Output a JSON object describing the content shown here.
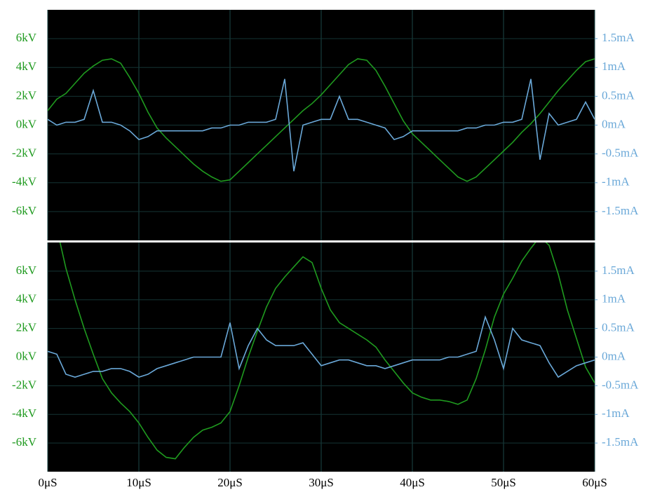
{
  "chart_data": [
    {
      "type": "line",
      "x": [
        0,
        1,
        2,
        3,
        4,
        5,
        6,
        7,
        8,
        9,
        10,
        11,
        12,
        13,
        14,
        15,
        16,
        17,
        18,
        19,
        20,
        21,
        22,
        23,
        24,
        25,
        26,
        27,
        28,
        29,
        30,
        31,
        32,
        33,
        34,
        35,
        36,
        37,
        38,
        39,
        40,
        41,
        42,
        43,
        44,
        45,
        46,
        47,
        48,
        49,
        50,
        51,
        52,
        53,
        54,
        55,
        56,
        57,
        58,
        59,
        60
      ],
      "xlim": [
        0,
        60
      ],
      "xticks": [
        0,
        10,
        20,
        30,
        40,
        50,
        60
      ],
      "ylim": [
        -8,
        8
      ],
      "yticks": [
        {
          "value": -6,
          "label": "-6kV"
        },
        {
          "value": -4,
          "label": "-4kV"
        },
        {
          "value": -2,
          "label": "-2kV"
        },
        {
          "value": 0,
          "label": "0kV"
        },
        {
          "value": 2,
          "label": "2kV"
        },
        {
          "value": 4,
          "label": "4kV"
        },
        {
          "value": 6,
          "label": "6kV"
        }
      ],
      "y2lim": [
        -2,
        2
      ],
      "y2ticks": [
        {
          "value": -1.5,
          "label": "-1.5mA"
        },
        {
          "value": -1,
          "label": "-1mA"
        },
        {
          "value": -0.5,
          "label": "-0.5mA"
        },
        {
          "value": 0,
          "label": "0mA"
        },
        {
          "value": 0.5,
          "label": "0.5mA"
        },
        {
          "value": 1,
          "label": "1mA"
        },
        {
          "value": 1.5,
          "label": "1.5mA"
        }
      ],
      "grid": true,
      "series": [
        {
          "color": "#1f9a1f",
          "values": [
            1.0,
            1.8,
            2.2,
            2.9,
            3.6,
            4.1,
            4.5,
            4.6,
            4.3,
            3.3,
            2.2,
            0.9,
            -0.2,
            -0.9,
            -1.5,
            -2.1,
            -2.7,
            -3.2,
            -3.6,
            -3.9,
            -3.8,
            -3.2,
            -2.6,
            -2.0,
            -1.4,
            -0.8,
            -0.2,
            0.4,
            1.0,
            1.5,
            2.1,
            2.8,
            3.5,
            4.2,
            4.6,
            4.5,
            3.8,
            2.7,
            1.5,
            0.3,
            -0.6,
            -1.2,
            -1.8,
            -2.4,
            -3.0,
            -3.6,
            -3.9,
            -3.6,
            -3.0,
            -2.4,
            -1.8,
            -1.2,
            -0.5,
            0.1,
            0.8,
            1.6,
            2.4,
            3.1,
            3.8,
            4.4,
            4.6
          ]
        },
        {
          "color": "#6aa8d8",
          "axis": "y2",
          "values": [
            0.1,
            0.0,
            0.05,
            0.05,
            0.1,
            0.6,
            0.05,
            0.05,
            0.0,
            -0.1,
            -0.25,
            -0.2,
            -0.1,
            -0.1,
            -0.1,
            -0.1,
            -0.1,
            -0.1,
            -0.05,
            -0.05,
            0.0,
            0.0,
            0.05,
            0.05,
            0.05,
            0.1,
            0.8,
            -0.8,
            0.0,
            0.05,
            0.1,
            0.1,
            0.5,
            0.1,
            0.1,
            0.05,
            0.0,
            -0.05,
            -0.25,
            -0.2,
            -0.1,
            -0.1,
            -0.1,
            -0.1,
            -0.1,
            -0.1,
            -0.05,
            -0.05,
            0.0,
            0.0,
            0.05,
            0.05,
            0.1,
            0.8,
            -0.6,
            0.2,
            0.0,
            0.05,
            0.1,
            0.4,
            0.1
          ]
        }
      ]
    },
    {
      "type": "line",
      "x": [
        0,
        1,
        2,
        3,
        4,
        5,
        6,
        7,
        8,
        9,
        10,
        11,
        12,
        13,
        14,
        15,
        16,
        17,
        18,
        19,
        20,
        21,
        22,
        23,
        24,
        25,
        26,
        27,
        28,
        29,
        30,
        31,
        32,
        33,
        34,
        35,
        36,
        37,
        38,
        39,
        40,
        41,
        42,
        43,
        44,
        45,
        46,
        47,
        48,
        49,
        50,
        51,
        52,
        53,
        54,
        55,
        56,
        57,
        58,
        59,
        60
      ],
      "xlim": [
        0,
        60
      ],
      "xticks": [
        {
          "value": 0,
          "label": "0μS"
        },
        {
          "value": 10,
          "label": "10μS"
        },
        {
          "value": 20,
          "label": "20μS"
        },
        {
          "value": 30,
          "label": "30μS"
        },
        {
          "value": 40,
          "label": "40μS"
        },
        {
          "value": 50,
          "label": "50μS"
        },
        {
          "value": 60,
          "label": "60μS"
        }
      ],
      "ylim": [
        -8,
        8
      ],
      "yticks": [
        {
          "value": -6,
          "label": "-6kV"
        },
        {
          "value": -4,
          "label": "-4kV"
        },
        {
          "value": -2,
          "label": "-2kV"
        },
        {
          "value": 0,
          "label": "0kV"
        },
        {
          "value": 2,
          "label": "2kV"
        },
        {
          "value": 4,
          "label": "4kV"
        },
        {
          "value": 6,
          "label": "6kV"
        }
      ],
      "y2lim": [
        -2,
        2
      ],
      "y2ticks": [
        {
          "value": -1.5,
          "label": "-1.5mA"
        },
        {
          "value": -1,
          "label": "-1mA"
        },
        {
          "value": -0.5,
          "label": "-0.5mA"
        },
        {
          "value": 0,
          "label": "0mA"
        },
        {
          "value": 0.5,
          "label": "0.5mA"
        },
        {
          "value": 1,
          "label": "1mA"
        },
        {
          "value": 1.5,
          "label": "1.5mA"
        }
      ],
      "grid": true,
      "series": [
        {
          "color": "#1f9a1f",
          "values": [
            11.0,
            9.0,
            6.2,
            4.0,
            2.0,
            0.2,
            -1.5,
            -2.5,
            -3.2,
            -3.8,
            -4.6,
            -5.6,
            -6.5,
            -7.0,
            -7.1,
            -6.3,
            -5.6,
            -5.1,
            -4.9,
            -4.6,
            -3.8,
            -2.0,
            0.0,
            1.8,
            3.5,
            4.8,
            5.6,
            6.3,
            7.0,
            6.6,
            4.8,
            3.3,
            2.4,
            2.0,
            1.6,
            1.2,
            0.7,
            -0.2,
            -1.0,
            -1.8,
            -2.5,
            -2.8,
            -3.0,
            -3.0,
            -3.1,
            -3.3,
            -3.0,
            -1.5,
            0.5,
            2.8,
            4.4,
            5.5,
            6.7,
            7.6,
            8.4,
            7.8,
            5.8,
            3.3,
            1.3,
            -0.7,
            -1.8
          ]
        },
        {
          "color": "#6aa8d8",
          "axis": "y2",
          "values": [
            0.1,
            0.05,
            -0.3,
            -0.35,
            -0.3,
            -0.25,
            -0.25,
            -0.2,
            -0.2,
            -0.25,
            -0.35,
            -0.3,
            -0.2,
            -0.15,
            -0.1,
            -0.05,
            0.0,
            0.0,
            0.0,
            0.0,
            0.6,
            -0.2,
            0.2,
            0.5,
            0.3,
            0.2,
            0.2,
            0.2,
            0.25,
            0.05,
            -0.15,
            -0.1,
            -0.05,
            -0.05,
            -0.1,
            -0.15,
            -0.15,
            -0.2,
            -0.15,
            -0.1,
            -0.05,
            -0.05,
            -0.05,
            -0.05,
            0.0,
            0.0,
            0.05,
            0.1,
            0.7,
            0.3,
            -0.2,
            0.5,
            0.3,
            0.25,
            0.2,
            -0.1,
            -0.35,
            -0.25,
            -0.15,
            -0.1,
            -0.05
          ]
        }
      ]
    }
  ]
}
